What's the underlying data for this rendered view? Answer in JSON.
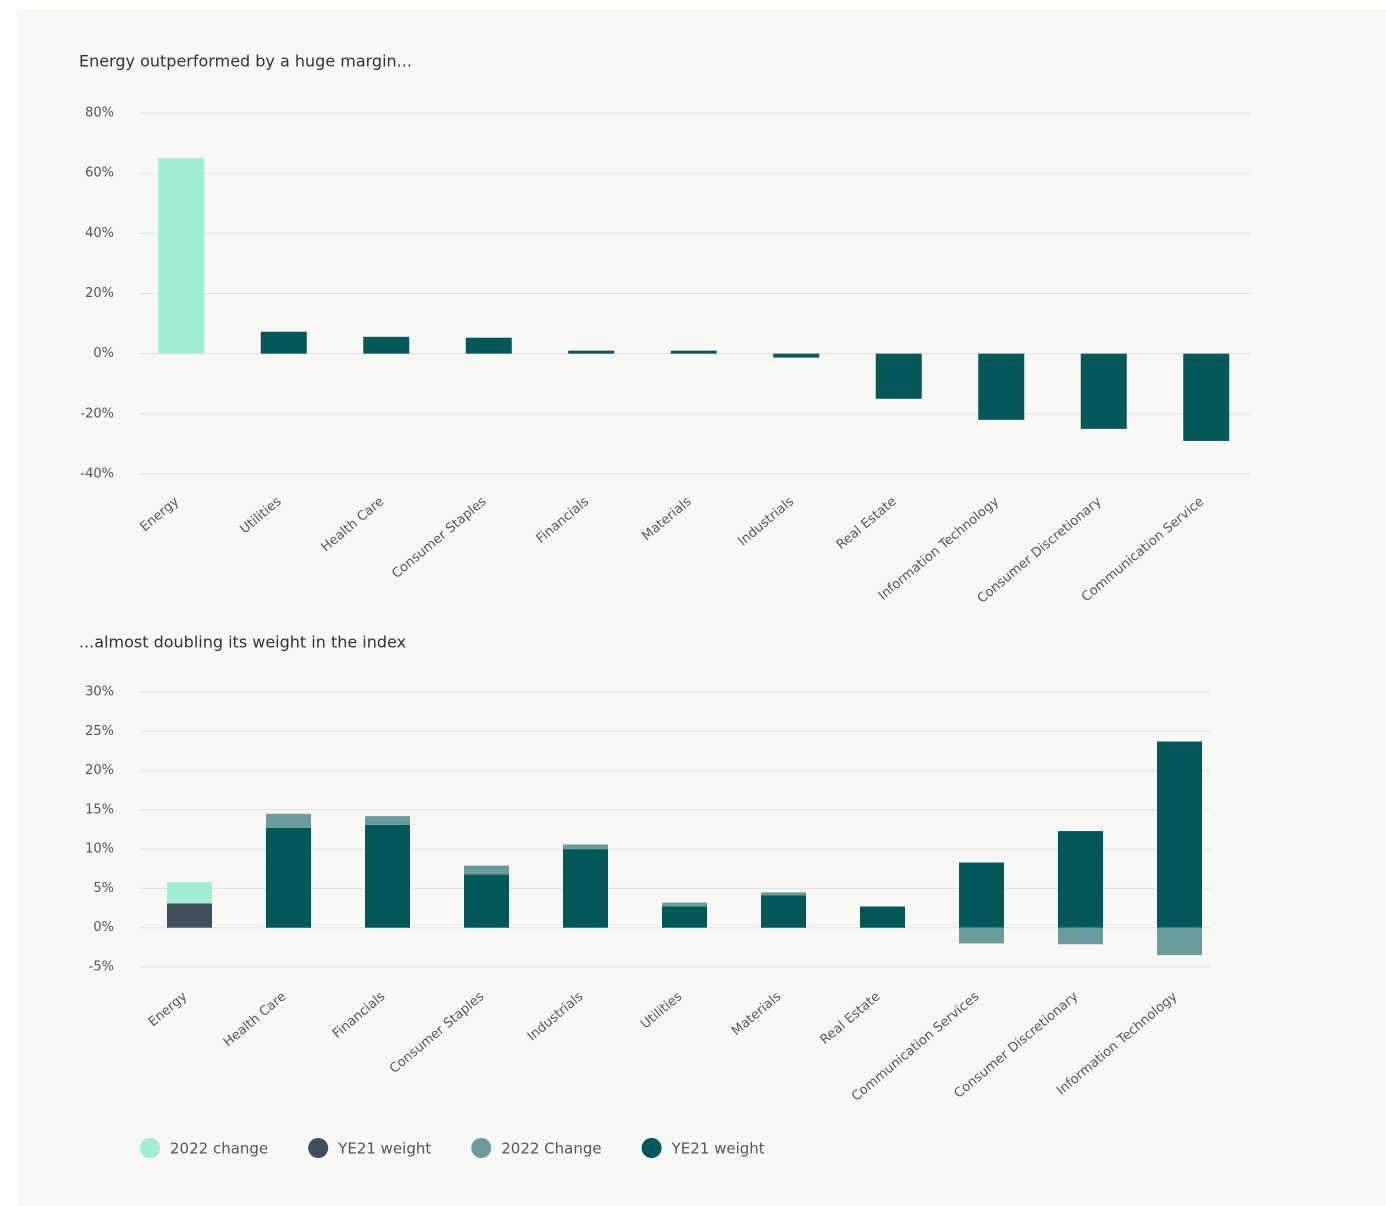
{
  "chart_data": [
    {
      "type": "bar",
      "title": "Energy outperformed by a huge margin...",
      "categories": [
        "Energy",
        "Utilities",
        "Health Care",
        "Consumer Staples",
        "Financials",
        "Materials",
        "Industrials",
        "Real Estate",
        "Information Technology",
        "Consumer Discretionary",
        "Communication Service"
      ],
      "values": [
        65,
        7.3,
        5.6,
        5.3,
        1,
        1,
        -1.3,
        -15,
        -22,
        -25,
        -29
      ],
      "colors": [
        "#9feed5",
        "#03585a",
        "#03585a",
        "#03585a",
        "#03585a",
        "#03585a",
        "#03585a",
        "#03585a",
        "#03585a",
        "#03585a",
        "#03585a"
      ],
      "ylim": [
        -40,
        80
      ],
      "yticks": [
        {
          "value": -40,
          "label": "-40%"
        },
        {
          "value": -20,
          "label": "-20%"
        },
        {
          "value": 0,
          "label": "0%"
        },
        {
          "value": 20,
          "label": "20%"
        },
        {
          "value": 40,
          "label": "40%"
        },
        {
          "value": 60,
          "label": "60%"
        },
        {
          "value": 80,
          "label": "80%"
        }
      ],
      "grid": true
    },
    {
      "type": "stacked_bar",
      "title": "...almost doubling its weight in the index",
      "categories": [
        "Energy",
        "Health Care",
        "Financials",
        "Consumer Staples",
        "Industrials",
        "Utilities",
        "Materials",
        "Real Estate",
        "Communication Services",
        "Consumer Discretionary",
        "Information Technology"
      ],
      "series": [
        {
          "name": "2022 change",
          "color": "#9feed5",
          "role": "change",
          "values": [
            2.7,
            null,
            null,
            null,
            null,
            null,
            null,
            null,
            null,
            null,
            null
          ]
        },
        {
          "name": "YE21 weight",
          "color": "#414f5c",
          "role": "base",
          "values": [
            3.1,
            null,
            null,
            null,
            null,
            null,
            null,
            null,
            null,
            null,
            null
          ]
        },
        {
          "name": "2022 Change",
          "color": "#6a9c9c",
          "role": "change",
          "values": [
            null,
            1.8,
            1.1,
            1.1,
            0.6,
            0.5,
            0.4,
            0,
            -2,
            -2.1,
            -3.5
          ]
        },
        {
          "name": "YE21 weight",
          "color": "#03585a",
          "role": "base",
          "values": [
            null,
            12.7,
            13.1,
            6.8,
            10,
            2.7,
            4.1,
            2.7,
            8.3,
            12.3,
            23.7
          ]
        }
      ],
      "ylim": [
        -5,
        30
      ],
      "yticks": [
        {
          "value": -5,
          "label": "-5%"
        },
        {
          "value": 0,
          "label": "0%"
        },
        {
          "value": 5,
          "label": "5%"
        },
        {
          "value": 10,
          "label": "10%"
        },
        {
          "value": 15,
          "label": "15%"
        },
        {
          "value": 20,
          "label": "20%"
        },
        {
          "value": 25,
          "label": "25%"
        },
        {
          "value": 30,
          "label": "30%"
        }
      ],
      "grid": true,
      "legend": "bottom-left"
    }
  ]
}
